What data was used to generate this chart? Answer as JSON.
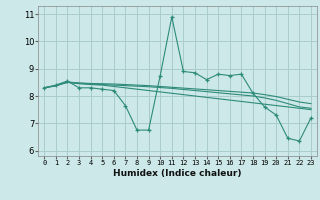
{
  "title": "",
  "xlabel": "Humidex (Indice chaleur)",
  "ylabel": "",
  "xlim": [
    -0.5,
    23.5
  ],
  "ylim": [
    5.8,
    11.3
  ],
  "yticks": [
    6,
    7,
    8,
    9,
    10,
    11
  ],
  "xticks": [
    0,
    1,
    2,
    3,
    4,
    5,
    6,
    7,
    8,
    9,
    10,
    11,
    12,
    13,
    14,
    15,
    16,
    17,
    18,
    19,
    20,
    21,
    22,
    23
  ],
  "background_color": "#cce8e8",
  "grid_color": "#aacccc",
  "line_color": "#2e8b7a",
  "lines": [
    {
      "x": [
        0,
        1,
        2,
        3,
        4,
        5,
        6,
        7,
        8,
        9,
        10,
        11,
        12,
        13,
        14,
        15,
        16,
        17,
        18,
        19,
        20,
        21,
        22,
        23
      ],
      "y": [
        8.3,
        8.4,
        8.55,
        8.3,
        8.3,
        8.25,
        8.2,
        7.65,
        6.75,
        6.75,
        8.75,
        10.9,
        8.9,
        8.85,
        8.6,
        8.8,
        8.75,
        8.8,
        8.1,
        7.6,
        7.3,
        6.45,
        6.35,
        7.2
      ],
      "marker": "+"
    },
    {
      "x": [
        0,
        1,
        2,
        3,
        4,
        5,
        6,
        7,
        8,
        9,
        10,
        11,
        12,
        13,
        14,
        15,
        16,
        17,
        18,
        19,
        20,
        21,
        22,
        23
      ],
      "y": [
        8.3,
        8.38,
        8.5,
        8.45,
        8.42,
        8.4,
        8.35,
        8.3,
        8.25,
        8.2,
        8.15,
        8.1,
        8.05,
        8.0,
        7.95,
        7.9,
        7.85,
        7.8,
        7.75,
        7.7,
        7.65,
        7.6,
        7.55,
        7.5
      ],
      "marker": null
    },
    {
      "x": [
        0,
        1,
        2,
        3,
        4,
        5,
        6,
        7,
        8,
        9,
        10,
        11,
        12,
        13,
        14,
        15,
        16,
        17,
        18,
        19,
        20,
        21,
        22,
        23
      ],
      "y": [
        8.3,
        8.38,
        8.5,
        8.48,
        8.46,
        8.45,
        8.44,
        8.42,
        8.4,
        8.38,
        8.35,
        8.32,
        8.29,
        8.26,
        8.23,
        8.2,
        8.17,
        8.14,
        8.11,
        8.05,
        7.98,
        7.88,
        7.78,
        7.72
      ],
      "marker": null
    },
    {
      "x": [
        0,
        1,
        2,
        3,
        4,
        5,
        6,
        7,
        8,
        9,
        10,
        11,
        12,
        13,
        14,
        15,
        16,
        17,
        18,
        19,
        20,
        21,
        22,
        23
      ],
      "y": [
        8.3,
        8.37,
        8.52,
        8.47,
        8.44,
        8.42,
        8.4,
        8.38,
        8.36,
        8.34,
        8.31,
        8.28,
        8.24,
        8.2,
        8.16,
        8.12,
        8.08,
        8.04,
        8.0,
        7.93,
        7.84,
        7.72,
        7.6,
        7.55
      ],
      "marker": null
    }
  ]
}
